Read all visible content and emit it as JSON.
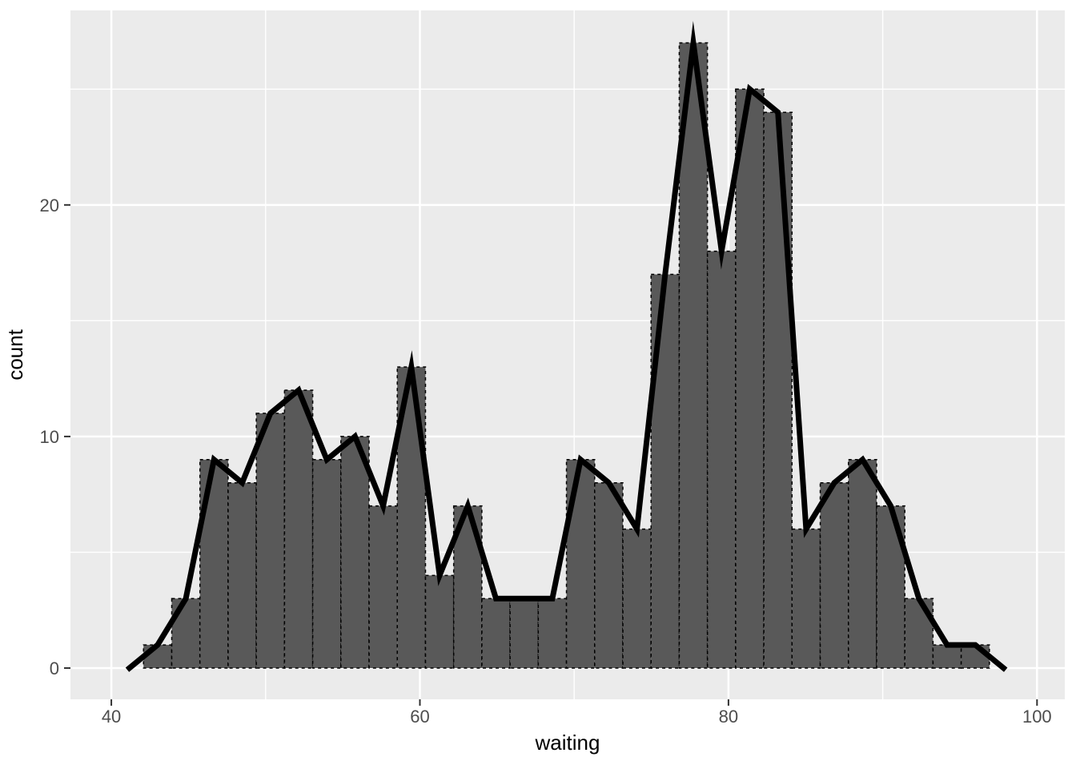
{
  "chart_data": {
    "type": "histogram_with_freqpoly",
    "title": "",
    "xlabel": "waiting",
    "ylabel": "count",
    "bins": 30,
    "bin_width": 1.82759,
    "bin_centers": [
      43.0,
      44.828,
      46.655,
      48.483,
      50.31,
      52.138,
      53.966,
      55.793,
      57.621,
      59.448,
      61.276,
      63.103,
      64.931,
      66.759,
      68.586,
      70.414,
      72.241,
      74.069,
      75.897,
      77.724,
      79.552,
      81.379,
      83.207,
      85.034,
      86.862,
      88.69,
      90.517,
      92.345,
      94.172,
      96.0
    ],
    "counts": [
      1,
      3,
      9,
      8,
      11,
      12,
      9,
      10,
      7,
      13,
      4,
      7,
      3,
      3,
      3,
      9,
      8,
      6,
      17,
      27,
      18,
      25,
      24,
      6,
      8,
      9,
      7,
      3,
      1,
      1
    ],
    "total_observations": 272,
    "freqpoly_pad_x": [
      41.172,
      97.828
    ],
    "freqpoly_pad_y": [
      0,
      0
    ],
    "axes": {
      "x": {
        "label": "waiting",
        "major_ticks": [
          40,
          60,
          80,
          100
        ],
        "minor_ticks": [
          50,
          70,
          90
        ],
        "lim": [
          37.35,
          101.8
        ]
      },
      "y": {
        "label": "count",
        "major_ticks": [
          0,
          10,
          20
        ],
        "minor_ticks": [
          5,
          15,
          25
        ],
        "lim": [
          -1.35,
          28.4
        ]
      }
    },
    "legend": "none",
    "grid": true,
    "colors": {
      "background": "#FFFFFF",
      "panel_bg": "#EBEBEB",
      "grid_major": "#FFFFFF",
      "grid_minor": "#FFFFFF",
      "bar_fill": "#595959",
      "bar_border": "#000000",
      "freqpoly_line": "#000000",
      "axis_text": "#4D4D4D",
      "axis_title": "#000000",
      "tick_mark": "#333333"
    }
  }
}
